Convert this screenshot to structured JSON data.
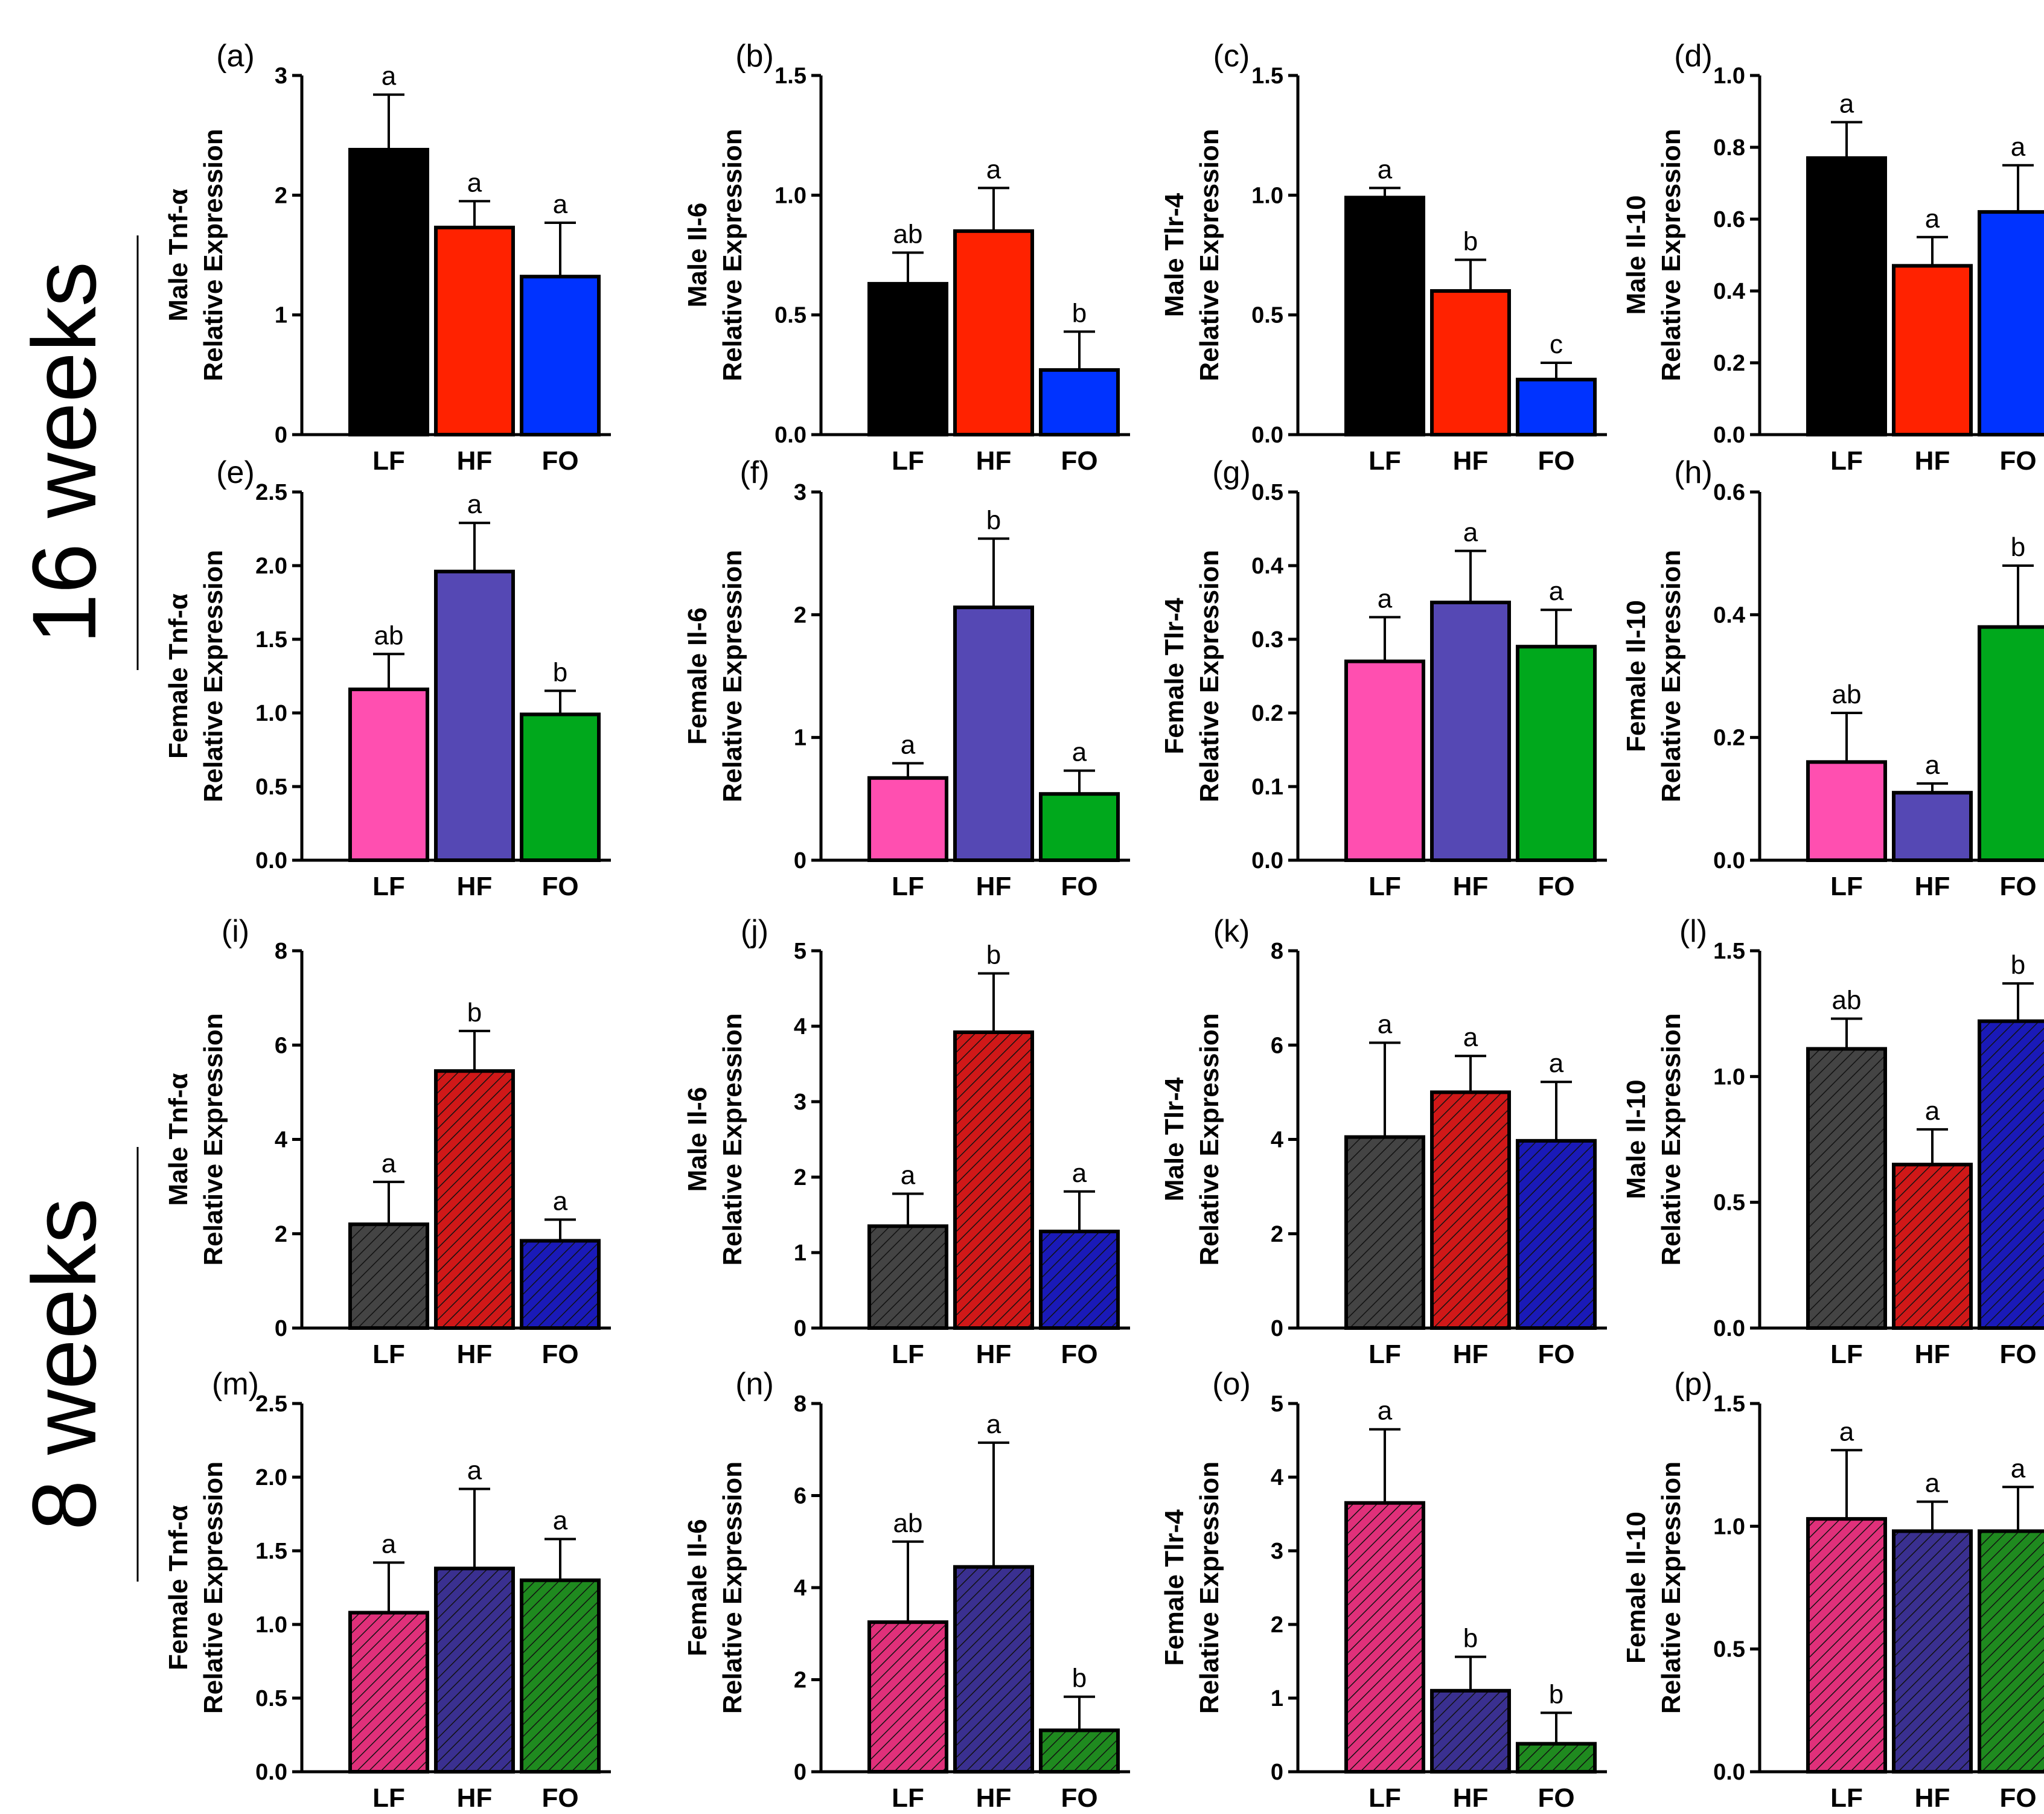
{
  "colors": {
    "LF_male_16": "#000000",
    "HF_male_16": "#ff2200",
    "FO_male_16": "#0033ff",
    "LF_female_16": "#ff4fb0",
    "HF_female_16": "#5548b4",
    "FO_female_16": "#00a81c",
    "LF_male_8": "#444444",
    "HF_male_8": "#d01818",
    "FO_male_8": "#1a1ab8",
    "LF_female_8": "#e0307a",
    "HF_female_8": "#3a3090",
    "FO_female_8": "#1f8a1f"
  },
  "sections": [
    {
      "label": "16 weeks"
    },
    {
      "label": "8 weeks"
    }
  ],
  "chart_data": [
    {
      "id": "a",
      "letter": "(a)",
      "type": "bar",
      "title": "",
      "ylabel": [
        "Male Tnf-α",
        "Relative Expression"
      ],
      "categories": [
        "LF",
        "HF",
        "FO"
      ],
      "values": [
        2.38,
        1.73,
        1.32
      ],
      "errors": [
        0.46,
        0.22,
        0.45
      ],
      "sig": [
        "a",
        "a",
        "a"
      ],
      "ylim": [
        0,
        3
      ],
      "ticks": [
        0,
        1,
        2,
        3
      ],
      "tick_labels": [
        "0",
        "1",
        "2",
        "3"
      ],
      "colors": [
        "#000000",
        "#ff2200",
        "#0033ff"
      ],
      "hatched": false
    },
    {
      "id": "b",
      "letter": "(b)",
      "type": "bar",
      "title": "",
      "ylabel": [
        "Male Il-6",
        "Relative Expression"
      ],
      "categories": [
        "LF",
        "HF",
        "FO"
      ],
      "values": [
        0.63,
        0.85,
        0.27
      ],
      "errors": [
        0.13,
        0.18,
        0.16
      ],
      "sig": [
        "ab",
        "a",
        "b"
      ],
      "ylim": [
        0,
        1.5
      ],
      "ticks": [
        0,
        0.5,
        1.0,
        1.5
      ],
      "tick_labels": [
        "0.0",
        "0.5",
        "1.0",
        "1.5"
      ],
      "colors": [
        "#000000",
        "#ff2200",
        "#0033ff"
      ],
      "hatched": false
    },
    {
      "id": "c",
      "letter": "(c)",
      "type": "bar",
      "title": "",
      "ylabel": [
        "Male Tlr-4",
        "Relative Expression"
      ],
      "categories": [
        "LF",
        "HF",
        "FO"
      ],
      "values": [
        0.99,
        0.6,
        0.23
      ],
      "errors": [
        0.04,
        0.13,
        0.07
      ],
      "sig": [
        "a",
        "b",
        "c"
      ],
      "ylim": [
        0,
        1.5
      ],
      "ticks": [
        0,
        0.5,
        1.0,
        1.5
      ],
      "tick_labels": [
        "0.0",
        "0.5",
        "1.0",
        "1.5"
      ],
      "colors": [
        "#000000",
        "#ff2200",
        "#0033ff"
      ],
      "hatched": false
    },
    {
      "id": "d",
      "letter": "(d)",
      "type": "bar",
      "title": "",
      "ylabel": [
        "Male Il-10",
        "Relative Expression"
      ],
      "categories": [
        "LF",
        "HF",
        "FO"
      ],
      "values": [
        0.77,
        0.47,
        0.62
      ],
      "errors": [
        0.1,
        0.08,
        0.13
      ],
      "sig": [
        "a",
        "a",
        "a"
      ],
      "ylim": [
        0,
        1.0
      ],
      "ticks": [
        0,
        0.2,
        0.4,
        0.6,
        0.8,
        1.0
      ],
      "tick_labels": [
        "0.0",
        "0.2",
        "0.4",
        "0.6",
        "0.8",
        "1.0"
      ],
      "colors": [
        "#000000",
        "#ff2200",
        "#0033ff"
      ],
      "hatched": false
    },
    {
      "id": "e",
      "letter": "(e)",
      "type": "bar",
      "title": "",
      "ylabel": [
        "Female Tnf-α",
        "Relative Expression"
      ],
      "categories": [
        "LF",
        "HF",
        "FO"
      ],
      "values": [
        1.16,
        1.96,
        0.99
      ],
      "errors": [
        0.24,
        0.33,
        0.16
      ],
      "sig": [
        "ab",
        "a",
        "b"
      ],
      "ylim": [
        0,
        2.5
      ],
      "ticks": [
        0,
        0.5,
        1.0,
        1.5,
        2.0,
        2.5
      ],
      "tick_labels": [
        "0.0",
        "0.5",
        "1.0",
        "1.5",
        "2.0",
        "2.5"
      ],
      "colors": [
        "#ff4fb0",
        "#5548b4",
        "#00a81c"
      ],
      "hatched": false
    },
    {
      "id": "f",
      "letter": "(f)",
      "type": "bar",
      "title": "",
      "ylabel": [
        "Female Il-6",
        "Relative Expression"
      ],
      "categories": [
        "LF",
        "HF",
        "FO"
      ],
      "values": [
        0.67,
        2.06,
        0.54
      ],
      "errors": [
        0.12,
        0.56,
        0.19
      ],
      "sig": [
        "a",
        "b",
        "a"
      ],
      "ylim": [
        0,
        3
      ],
      "ticks": [
        0,
        1,
        2,
        3
      ],
      "tick_labels": [
        "0",
        "1",
        "2",
        "3"
      ],
      "colors": [
        "#ff4fb0",
        "#5548b4",
        "#00a81c"
      ],
      "hatched": false
    },
    {
      "id": "g",
      "letter": "(g)",
      "type": "bar",
      "title": "",
      "ylabel": [
        "Female Tlr-4",
        "Relative Expression"
      ],
      "categories": [
        "LF",
        "HF",
        "FO"
      ],
      "values": [
        0.27,
        0.35,
        0.29
      ],
      "errors": [
        0.06,
        0.07,
        0.05
      ],
      "sig": [
        "a",
        "a",
        "a"
      ],
      "ylim": [
        0,
        0.5
      ],
      "ticks": [
        0,
        0.1,
        0.2,
        0.3,
        0.4,
        0.5
      ],
      "tick_labels": [
        "0.0",
        "0.1",
        "0.2",
        "0.3",
        "0.4",
        "0.5"
      ],
      "colors": [
        "#ff4fb0",
        "#5548b4",
        "#00a81c"
      ],
      "hatched": false
    },
    {
      "id": "h",
      "letter": "(h)",
      "type": "bar",
      "title": "",
      "ylabel": [
        "Female Il-10",
        "Relative Expression"
      ],
      "categories": [
        "LF",
        "HF",
        "FO"
      ],
      "values": [
        0.16,
        0.11,
        0.38
      ],
      "errors": [
        0.08,
        0.015,
        0.1
      ],
      "sig": [
        "ab",
        "a",
        "b"
      ],
      "ylim": [
        0,
        0.6
      ],
      "ticks": [
        0,
        0.2,
        0.4,
        0.6
      ],
      "tick_labels": [
        "0.0",
        "0.2",
        "0.4",
        "0.6"
      ],
      "colors": [
        "#ff4fb0",
        "#5548b4",
        "#00a81c"
      ],
      "hatched": false
    },
    {
      "id": "i",
      "letter": "(i)",
      "type": "bar",
      "title": "",
      "ylabel": [
        "Male Tnf-α",
        "Relative Expression"
      ],
      "categories": [
        "LF",
        "HF",
        "FO"
      ],
      "values": [
        2.2,
        5.45,
        1.85
      ],
      "errors": [
        0.9,
        0.85,
        0.45
      ],
      "sig": [
        "a",
        "b",
        "a"
      ],
      "ylim": [
        0,
        8
      ],
      "ticks": [
        0,
        2,
        4,
        6,
        8
      ],
      "tick_labels": [
        "0",
        "2",
        "4",
        "6",
        "8"
      ],
      "colors": [
        "#444444",
        "#d01818",
        "#1a1ab8"
      ],
      "hatched": true
    },
    {
      "id": "j",
      "letter": "(j)",
      "type": "bar",
      "title": "",
      "ylabel": [
        "Male Il-6",
        "Relative Expression"
      ],
      "categories": [
        "LF",
        "HF",
        "FO"
      ],
      "values": [
        1.35,
        3.92,
        1.28
      ],
      "errors": [
        0.43,
        0.78,
        0.53
      ],
      "sig": [
        "a",
        "b",
        "a"
      ],
      "ylim": [
        0,
        5
      ],
      "ticks": [
        0,
        1,
        2,
        3,
        4,
        5
      ],
      "tick_labels": [
        "0",
        "1",
        "2",
        "3",
        "4",
        "5"
      ],
      "colors": [
        "#444444",
        "#d01818",
        "#1a1ab8"
      ],
      "hatched": true
    },
    {
      "id": "k",
      "letter": "(k)",
      "type": "bar",
      "title": "",
      "ylabel": [
        "Male Tlr-4",
        "Relative Expression"
      ],
      "categories": [
        "LF",
        "HF",
        "FO"
      ],
      "values": [
        4.05,
        5.0,
        3.97
      ],
      "errors": [
        2.0,
        0.77,
        1.25
      ],
      "sig": [
        "a",
        "a",
        "a"
      ],
      "ylim": [
        0,
        8
      ],
      "ticks": [
        0,
        2,
        4,
        6,
        8
      ],
      "tick_labels": [
        "0",
        "2",
        "4",
        "6",
        "8"
      ],
      "colors": [
        "#444444",
        "#d01818",
        "#1a1ab8"
      ],
      "hatched": true
    },
    {
      "id": "l",
      "letter": "(l)",
      "type": "bar",
      "title": "",
      "ylabel": [
        "Male Il-10",
        "Relative Expression"
      ],
      "categories": [
        "LF",
        "HF",
        "FO"
      ],
      "values": [
        1.11,
        0.65,
        1.22
      ],
      "errors": [
        0.12,
        0.14,
        0.15
      ],
      "sig": [
        "ab",
        "a",
        "b"
      ],
      "ylim": [
        0,
        1.5
      ],
      "ticks": [
        0,
        0.5,
        1.0,
        1.5
      ],
      "tick_labels": [
        "0.0",
        "0.5",
        "1.0",
        "1.5"
      ],
      "colors": [
        "#444444",
        "#d01818",
        "#1a1ab8"
      ],
      "hatched": true
    },
    {
      "id": "m",
      "letter": "(m)",
      "type": "bar",
      "title": "",
      "ylabel": [
        "Female Tnf-α",
        "Relative Expression"
      ],
      "categories": [
        "LF",
        "HF",
        "FO"
      ],
      "values": [
        1.08,
        1.38,
        1.3
      ],
      "errors": [
        0.34,
        0.54,
        0.28
      ],
      "sig": [
        "a",
        "a",
        "a"
      ],
      "ylim": [
        0,
        2.5
      ],
      "ticks": [
        0,
        0.5,
        1.0,
        1.5,
        2.0,
        2.5
      ],
      "tick_labels": [
        "0.0",
        "0.5",
        "1.0",
        "1.5",
        "2.0",
        "2.5"
      ],
      "colors": [
        "#e0307a",
        "#3a3090",
        "#1f8a1f"
      ],
      "hatched": true
    },
    {
      "id": "n",
      "letter": "(n)",
      "type": "bar",
      "title": "",
      "ylabel": [
        "Female Il-6",
        "Relative Expression"
      ],
      "categories": [
        "LF",
        "HF",
        "FO"
      ],
      "values": [
        3.25,
        4.45,
        0.9
      ],
      "errors": [
        1.75,
        2.7,
        0.73
      ],
      "sig": [
        "ab",
        "a",
        "b"
      ],
      "ylim": [
        0,
        8
      ],
      "ticks": [
        0,
        2,
        4,
        6,
        8
      ],
      "tick_labels": [
        "0",
        "2",
        "4",
        "6",
        "8"
      ],
      "colors": [
        "#e0307a",
        "#3a3090",
        "#1f8a1f"
      ],
      "hatched": true
    },
    {
      "id": "o",
      "letter": "(o)",
      "type": "bar",
      "title": "",
      "ylabel": [
        "Female Tlr-4",
        "Relative Expression"
      ],
      "categories": [
        "LF",
        "HF",
        "FO"
      ],
      "values": [
        3.65,
        1.1,
        0.38
      ],
      "errors": [
        1.0,
        0.46,
        0.42
      ],
      "sig": [
        "a",
        "b",
        "b"
      ],
      "ylim": [
        0,
        5
      ],
      "ticks": [
        0,
        1,
        2,
        3,
        4,
        5
      ],
      "tick_labels": [
        "0",
        "1",
        "2",
        "3",
        "4",
        "5"
      ],
      "colors": [
        "#e0307a",
        "#3a3090",
        "#1f8a1f"
      ],
      "hatched": true
    },
    {
      "id": "p",
      "letter": "(p)",
      "type": "bar",
      "title": "",
      "ylabel": [
        "Female Il-10",
        "Relative Expression"
      ],
      "categories": [
        "LF",
        "HF",
        "FO"
      ],
      "values": [
        1.03,
        0.98,
        0.98
      ],
      "errors": [
        0.28,
        0.12,
        0.18
      ],
      "sig": [
        "a",
        "a",
        "a"
      ],
      "ylim": [
        0,
        1.5
      ],
      "ticks": [
        0,
        0.5,
        1.0,
        1.5
      ],
      "tick_labels": [
        "0.0",
        "0.5",
        "1.0",
        "1.5"
      ],
      "colors": [
        "#e0307a",
        "#3a3090",
        "#1f8a1f"
      ],
      "hatched": true
    }
  ]
}
